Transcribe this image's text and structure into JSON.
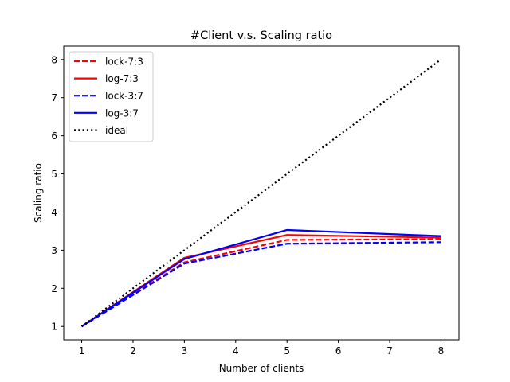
{
  "chart_data": {
    "type": "line",
    "title": "#Client v.s. Scaling ratio",
    "xlabel": "Number of clients",
    "ylabel": "Scaling ratio",
    "xlim": [
      0.65,
      8.35
    ],
    "ylim": [
      0.65,
      8.35
    ],
    "xticks": [
      1,
      2,
      3,
      4,
      5,
      6,
      7,
      8
    ],
    "yticks": [
      1,
      2,
      3,
      4,
      5,
      6,
      7,
      8
    ],
    "grid": false,
    "legend_position": "top-left",
    "x": [
      1,
      3,
      5,
      8
    ],
    "series": [
      {
        "name": "lock-7:3",
        "values": [
          1,
          2.68,
          3.27,
          3.29
        ],
        "color": "#ff0000",
        "style": "dashed"
      },
      {
        "name": "log-7:3",
        "values": [
          1,
          2.8,
          3.4,
          3.33
        ],
        "color": "#ff0000",
        "style": "solid"
      },
      {
        "name": "lock-3:7",
        "values": [
          1,
          2.65,
          3.17,
          3.21
        ],
        "color": "#0000ff",
        "style": "dashed"
      },
      {
        "name": "log-3:7",
        "values": [
          1,
          2.77,
          3.53,
          3.37
        ],
        "color": "#0000ff",
        "style": "solid"
      },
      {
        "name": "ideal",
        "values": [
          1,
          3,
          5,
          8
        ],
        "color": "#000000",
        "style": "dotted"
      }
    ]
  }
}
